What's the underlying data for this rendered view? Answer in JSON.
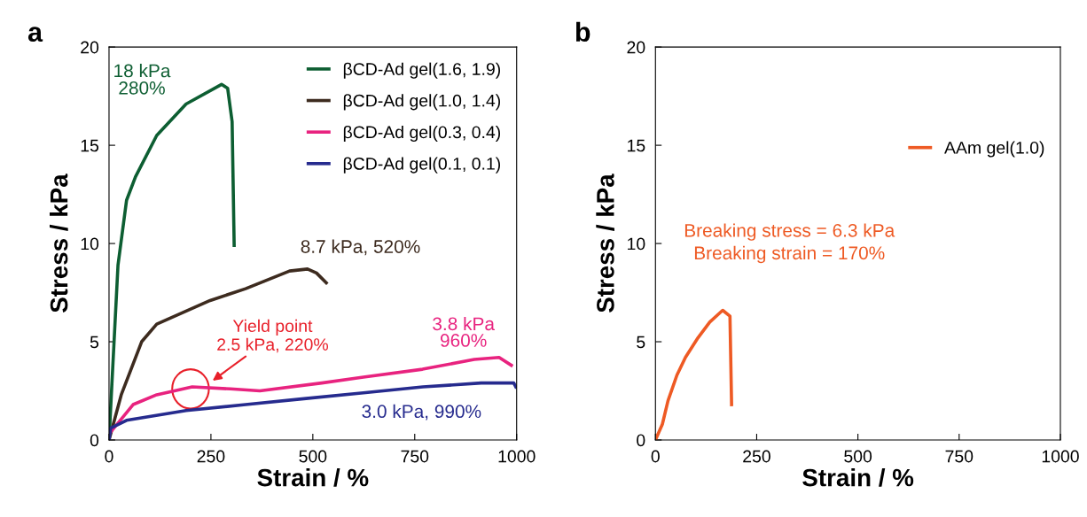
{
  "chart_data": [
    {
      "type": "line",
      "title": "a",
      "xlabel": "Strain / %",
      "ylabel": "Stress / kPa",
      "xlim": [
        0,
        1000
      ],
      "ylim": [
        0,
        20
      ],
      "xticks": [
        0,
        250,
        500,
        750,
        1000
      ],
      "yticks": [
        0,
        5,
        10,
        15,
        20
      ],
      "grid": false,
      "legend": "top right",
      "marker": "none",
      "line_style": "solid",
      "series": [
        {
          "name": "βCD-Ad gel(1.6, 1.9)",
          "color": "#0d5e32",
          "x": [
            0,
            22,
            43,
            65,
            117,
            189,
            276,
            291,
            302,
            307
          ],
          "values": [
            0,
            8.9,
            12.2,
            13.4,
            15.5,
            17.1,
            18.1,
            17.9,
            16.2,
            9.9
          ]
        },
        {
          "name": "βCD-Ad gel(1.0, 1.4)",
          "color": "#3d2b1f",
          "x": [
            0,
            4,
            30,
            80,
            117,
            248,
            335,
            443,
            487,
            509,
            533
          ],
          "values": [
            0,
            0.3,
            2.3,
            5.0,
            5.9,
            7.1,
            7.7,
            8.6,
            8.7,
            8.5,
            8.0
          ]
        },
        {
          "name": "βCD-Ad gel(0.3, 0.4)",
          "color": "#e8237f",
          "x": [
            0,
            59,
            117,
            204,
            298,
            370,
            522,
            624,
            769,
            896,
            957,
            987
          ],
          "values": [
            0.3,
            1.8,
            2.3,
            2.7,
            2.6,
            2.5,
            2.9,
            3.2,
            3.6,
            4.1,
            4.2,
            3.8
          ]
        },
        {
          "name": "βCD-Ad gel(0.1, 0.1)",
          "color": "#262b8e",
          "x": [
            0,
            4,
            43,
            189,
            335,
            478,
            624,
            770,
            913,
            993,
            998
          ],
          "values": [
            0,
            0.6,
            1.0,
            1.5,
            1.8,
            2.1,
            2.4,
            2.7,
            2.9,
            2.9,
            2.7
          ]
        }
      ],
      "annotations": [
        "18 kPa\n280%",
        {
          "text": "8.7 kPa, 520%",
          "x": 520,
          "y": 8.7
        },
        {
          "text": "3.8 kPa\n960%",
          "x": 960,
          "y": 3.8
        },
        {
          "text": "3.0 kPa, 990%",
          "x": 990,
          "y": 3.0
        },
        {
          "text": "Yield point\n2.5 kPa, 220%",
          "x": 220,
          "y": 2.5
        }
      ]
    },
    {
      "type": "line",
      "title": "b",
      "xlabel": "Strain / %",
      "ylabel": "Stress / kPa",
      "xlim": [
        0,
        1000
      ],
      "ylim": [
        0,
        20
      ],
      "xticks": [
        0,
        250,
        500,
        750,
        1000
      ],
      "yticks": [
        0,
        5,
        10,
        15,
        20
      ],
      "grid": false,
      "legend": "top right",
      "marker": "none",
      "line_style": "solid",
      "series": [
        {
          "name": "AAm gel(1.0)",
          "color": "#ee5a24",
          "x": [
            0,
            17,
            31,
            53,
            74,
            105,
            134,
            166,
            184,
            188
          ],
          "values": [
            0,
            0.8,
            2.0,
            3.3,
            4.2,
            5.2,
            6.0,
            6.6,
            6.3,
            1.8
          ]
        }
      ],
      "annotations": [
        "Breaking stress = 6.3 kPa\nBreaking strain = 170%"
      ]
    }
  ]
}
